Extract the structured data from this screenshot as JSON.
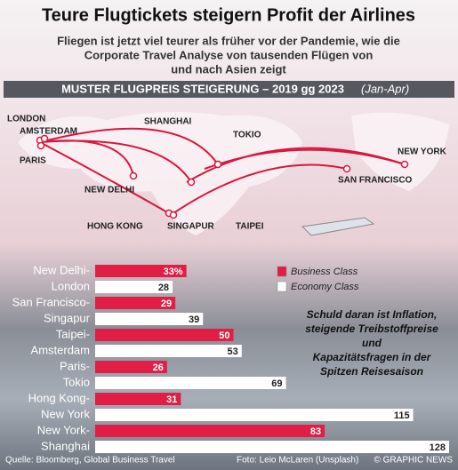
{
  "chart_data": {
    "type": "bar",
    "title": "Teure Flugtickets steigern Profit der Airlines",
    "subtitle": [
      "Fliegen ist jetzt viel teurer als früher vor der Pandemie, wie die",
      "Corporate Travel Analyse von tausenden Flügen von",
      "und nach Asien zeigt"
    ],
    "heading": "MUSTER FLUGPREIS STEIGERUNG – 2019 gg 2023",
    "heading_note": "(Jan-Apr)",
    "cities": [
      "LONDON",
      "AMSTERDAM",
      "PARIS",
      "NEW DELHI",
      "SHANGHAI",
      "TOKIO",
      "NEW YORK",
      "SAN FRANCISCO",
      "HONG KONG",
      "SINGAPUR",
      "TAIPEI"
    ],
    "categories": [
      [
        "New Delhi-",
        "London"
      ],
      [
        "San Francisco-",
        "Singapur"
      ],
      [
        "Taipei-",
        "Amsterdam"
      ],
      [
        "Paris-",
        "Tokio"
      ],
      [
        "Hong Kong-",
        "New York"
      ],
      [
        "New York-",
        "Shanghai"
      ]
    ],
    "series": [
      {
        "name": "Business Class",
        "color": "#e01e46",
        "values": [
          33,
          29,
          50,
          26,
          31,
          83
        ],
        "value_labels": [
          "33%",
          "29",
          "50",
          "26",
          "31",
          "83"
        ]
      },
      {
        "name": "Economy Class",
        "color": "#ffffff",
        "values": [
          28,
          39,
          53,
          69,
          115,
          128
        ]
      }
    ],
    "annotation": [
      "Schuld daran ist Inflation,",
      "steigende Treibstoffpreise",
      "und",
      "Kapazitätsfragen in der",
      "Spitzen Reisesaison"
    ],
    "source": "Quelle: Bloomberg, Global Business Travel",
    "photo_credit": "Foto: Leio McLaren (Unsplash)",
    "copyright": "© GRAPHIC NEWS"
  }
}
